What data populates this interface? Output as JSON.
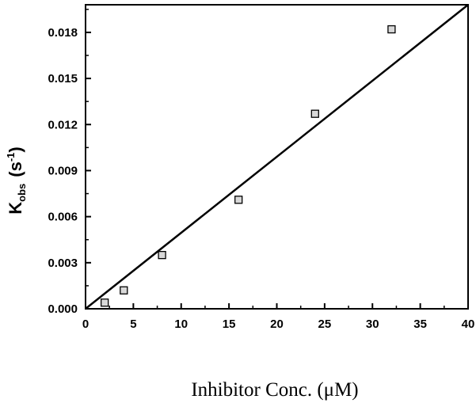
{
  "chart_data": {
    "type": "scatter",
    "xlabel": "Inhibitor Conc. (μM)",
    "ylabel": {
      "main": "K",
      "subscript": "obs",
      "unit_open": "(s",
      "unit_exp": "-1",
      "unit_close": ")"
    },
    "xlim": [
      0,
      40
    ],
    "ylim": [
      0,
      0.0198
    ],
    "xticks": [
      0,
      5,
      10,
      15,
      20,
      25,
      30,
      35,
      40
    ],
    "xtick_labels": [
      "0",
      "5",
      "10",
      "15",
      "20",
      "25",
      "30",
      "35",
      "40"
    ],
    "yticks": [
      0,
      0.003,
      0.006,
      0.009,
      0.012,
      0.015,
      0.018
    ],
    "ytick_labels": [
      "0.000",
      "0.003",
      "0.006",
      "0.009",
      "0.012",
      "0.015",
      "0.018"
    ],
    "grid": false,
    "legend": "none",
    "series": [
      {
        "x": [
          2,
          4,
          8,
          16,
          24,
          32
        ],
        "y": [
          0.0004,
          0.0012,
          0.0035,
          0.0071,
          0.0127,
          0.0182
        ]
      }
    ],
    "fit_line": {
      "x": [
        0,
        40
      ],
      "y": [
        0,
        0.0198
      ]
    }
  }
}
